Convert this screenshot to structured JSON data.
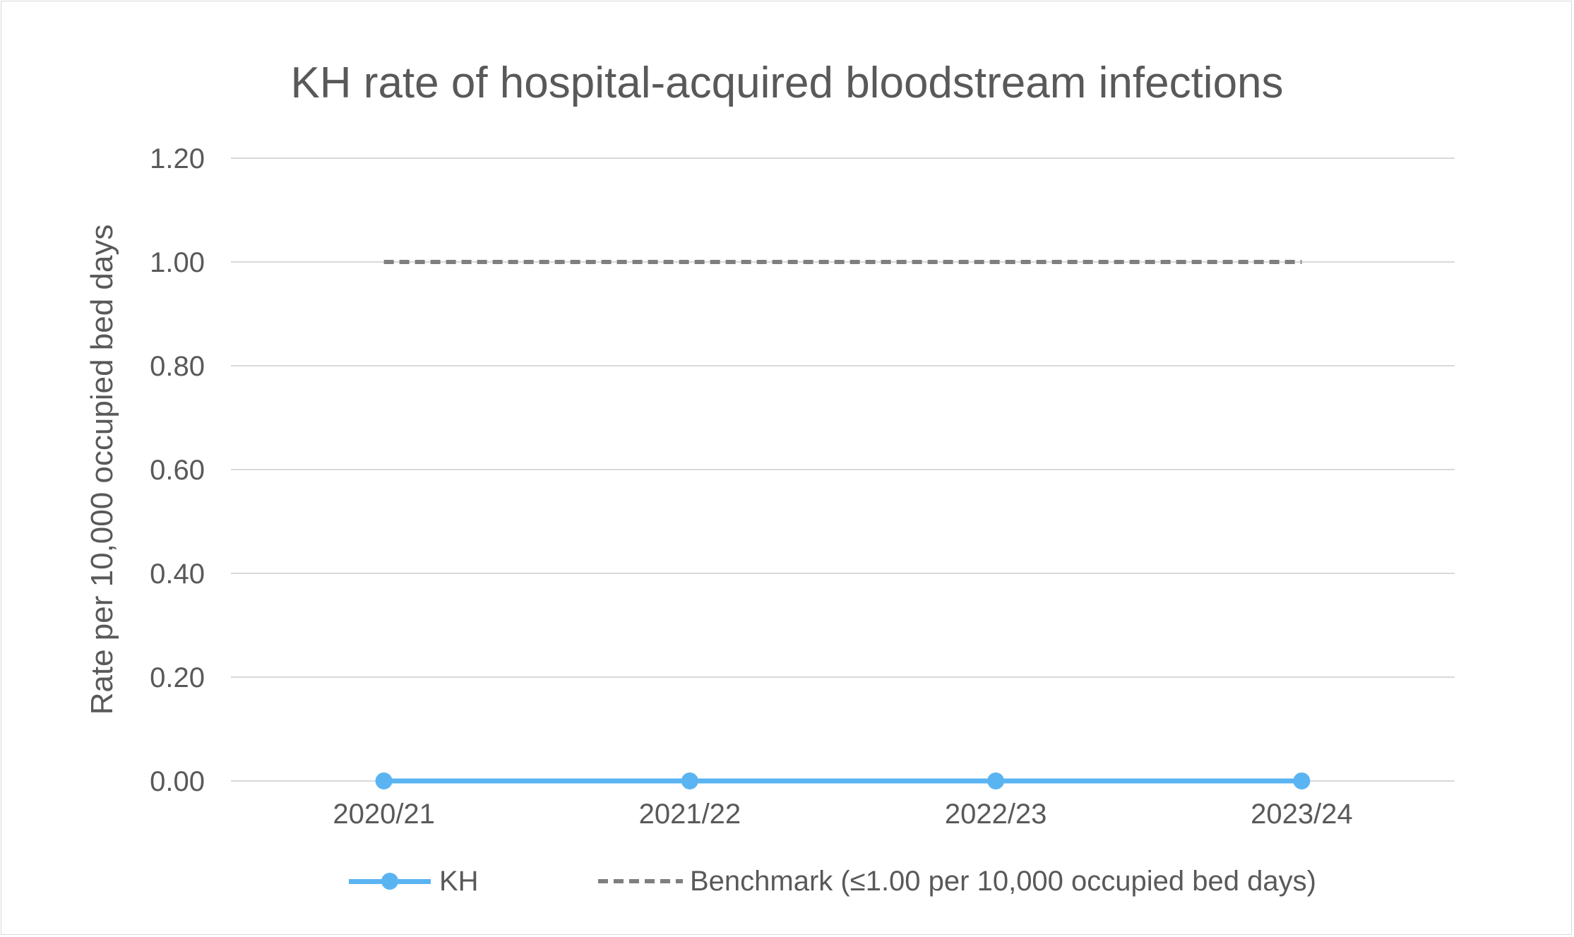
{
  "chart_data": {
    "type": "line",
    "title": "KH rate of hospital-acquired bloodstream infections",
    "xlabel": "",
    "ylabel": "Rate per 10,000 occupied bed days",
    "categories": [
      "2020/21",
      "2021/22",
      "2022/23",
      "2023/24"
    ],
    "ylim": [
      0,
      1.2
    ],
    "yticks": [
      "0.00",
      "0.20",
      "0.40",
      "0.60",
      "0.80",
      "1.00",
      "1.20"
    ],
    "grid": true,
    "legend_position": "bottom",
    "series": [
      {
        "name": "KH",
        "values": [
          0,
          0,
          0,
          0
        ],
        "color": "#5bb4f2",
        "style": "solid",
        "marker": "circle"
      },
      {
        "name": "Benchmark (≤1.00 per 10,000 occupied bed days)",
        "values": [
          1,
          1,
          1,
          1
        ],
        "color": "#7f7f7f",
        "style": "dashed",
        "marker": "none"
      }
    ]
  }
}
